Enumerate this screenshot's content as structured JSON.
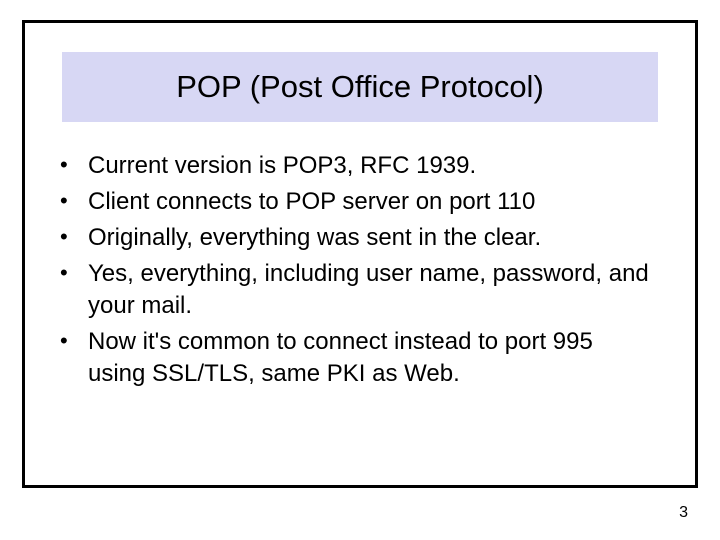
{
  "slide": {
    "title": "POP (Post Office Protocol)",
    "title_background": "#d7d7f4",
    "title_fontsize": 31,
    "bullets": [
      "Current version is POP3, RFC 1939.",
      "Client connects to POP server on port 110",
      "Originally, everything was sent in the clear.",
      "Yes, everything, including user name, password, and your mail.",
      "Now it's common to connect instead to port 995 using SSL/TLS, same PKI as Web."
    ],
    "bullet_fontsize": 24,
    "bullet_color": "#000000",
    "page_number": "3",
    "frame_border_color": "#000000",
    "background_color": "#ffffff"
  }
}
